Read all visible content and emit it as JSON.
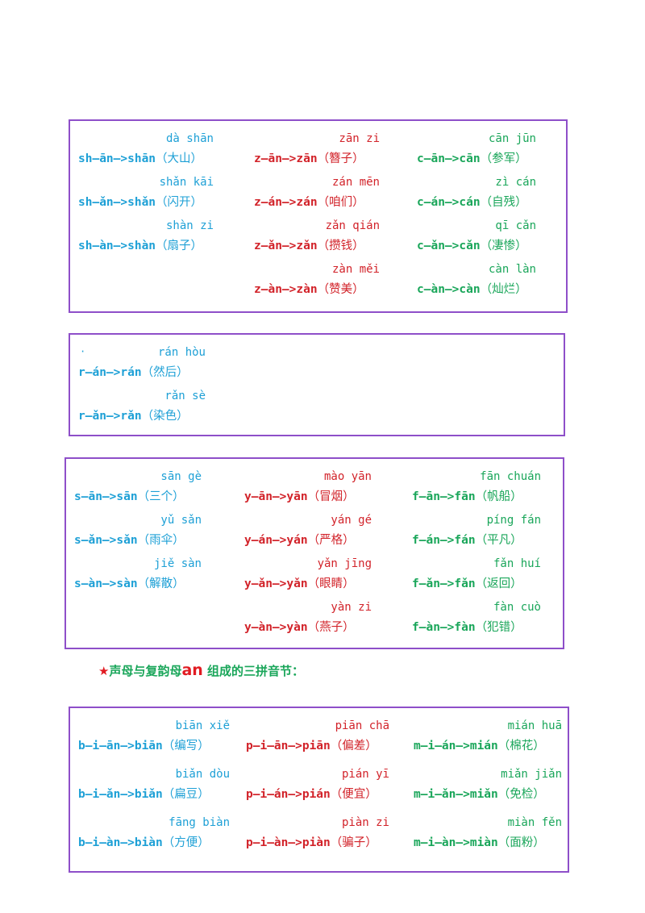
{
  "colors": {
    "border": "#8e4fc9",
    "blue": "#1ea0d6",
    "red": "#d2232a",
    "green": "#1aa65a"
  },
  "sections": [
    {
      "columns": [
        {
          "color": "blue",
          "entries": [
            {
              "pinyin": "dà shān",
              "spell": "sh—ān—>shān",
              "word": "（大山）"
            },
            {
              "pinyin": "shǎn kāi",
              "spell": "sh—ǎn—>shǎn",
              "word": "（闪开）"
            },
            {
              "pinyin": "shàn zi",
              "spell": "sh—àn—>shàn",
              "word": "（扇子）"
            }
          ]
        },
        {
          "color": "red",
          "entries": [
            {
              "pinyin": "zān zi",
              "spell": "z—ān—>zān",
              "word": "（簪子）"
            },
            {
              "pinyin": "zán mēn",
              "spell": "z—án—>zán",
              "word": "（咱们）"
            },
            {
              "pinyin": "zǎn qián",
              "spell": "z—ǎn—>zǎn",
              "word": "（攒钱）"
            },
            {
              "pinyin": "zàn měi",
              "spell": "z—àn—>zàn",
              "word": "（赞美）"
            }
          ]
        },
        {
          "color": "green",
          "entries": [
            {
              "pinyin": "cān jūn",
              "spell": "c—ān—>cān",
              "word": "（参军）"
            },
            {
              "pinyin": "zì cán",
              "spell": "c—án—>cán",
              "word": "（自残）"
            },
            {
              "pinyin": "qī cǎn",
              "spell": "c—ǎn—>cǎn",
              "word": "（凄惨）"
            },
            {
              "pinyin": "càn làn",
              "spell": "c—àn—>càn",
              "word": "（灿烂）"
            }
          ]
        }
      ]
    },
    {
      "bullet": "·",
      "columns": [
        {
          "color": "blue",
          "entries": [
            {
              "pinyin": "rán hòu",
              "spell": "r—án—>rán",
              "word": "（然后）"
            },
            {
              "pinyin": "rǎn sè",
              "spell": "r—ǎn—>rǎn",
              "word": "（染色）"
            }
          ]
        }
      ]
    },
    {
      "columns": [
        {
          "color": "blue",
          "entries": [
            {
              "pinyin": "sān gè",
              "spell": "s—ān—>sān",
              "word": "（三个）"
            },
            {
              "pinyin": "yǔ sǎn",
              "spell": "s—ǎn—>sǎn",
              "word": "（雨伞）"
            },
            {
              "pinyin": "jiě sàn",
              "spell": "s—àn—>sàn",
              "word": "（解散）"
            }
          ]
        },
        {
          "color": "red",
          "entries": [
            {
              "pinyin": "mào yān",
              "spell": "y—ān—>yān",
              "word": "（冒烟）"
            },
            {
              "pinyin": "yán gé",
              "spell": "y—án—>yán",
              "word": "（严格）"
            },
            {
              "pinyin": "yǎn jīng",
              "spell": "y—ǎn—>yǎn",
              "word": "（眼睛）"
            },
            {
              "pinyin": "yàn zi",
              "spell": "y—àn—>yàn",
              "word": "（燕子）"
            }
          ]
        },
        {
          "color": "green",
          "entries": [
            {
              "pinyin": "fān chuán",
              "spell": "f—ān—>fān",
              "word": "（帆船）"
            },
            {
              "pinyin": "píng fán",
              "spell": "f—án—>fán",
              "word": "（平凡）"
            },
            {
              "pinyin": "fǎn huí",
              "spell": "f—ǎn—>fǎn",
              "word": "（返回）"
            },
            {
              "pinyin": "fàn cuò",
              "spell": "f—àn—>fàn",
              "word": "（犯错）"
            }
          ]
        }
      ]
    }
  ],
  "heading": {
    "star": "★",
    "before": "声母与复韵母",
    "an": "an",
    "after": " 组成的三拼音节："
  },
  "section4": {
    "columns": [
      {
        "color": "blue",
        "entries": [
          {
            "pinyin": "biān xiě",
            "spell": "b—i—ān—>biān",
            "word": "（编写）"
          },
          {
            "pinyin": "biǎn dòu",
            "spell": "b—i—ǎn—>biǎn",
            "word": "（扁豆）"
          },
          {
            "pinyin": "fāng biàn",
            "spell": "b—i—àn—>biàn",
            "word": "（方便）"
          }
        ]
      },
      {
        "color": "red",
        "entries": [
          {
            "pinyin": "piān chā",
            "spell": "p—i—ān—>piān",
            "word": "（偏差）"
          },
          {
            "pinyin": "pián yī",
            "spell": "p—i—án—>pián",
            "word": "（便宜）"
          },
          {
            "pinyin": "piàn zi",
            "spell": "p—i—àn—>piàn",
            "word": "（骗子）"
          }
        ]
      },
      {
        "color": "green",
        "entries": [
          {
            "pinyin": "mián huā",
            "spell": "m—i—án—>mián",
            "word": "（棉花）"
          },
          {
            "pinyin": "miǎn jiǎn",
            "spell": "m—i—ǎn—>miǎn",
            "word": "（免检）"
          },
          {
            "pinyin": "miàn fěn",
            "spell": "m—i—àn—>miàn",
            "word": "（面粉）"
          }
        ]
      }
    ]
  }
}
